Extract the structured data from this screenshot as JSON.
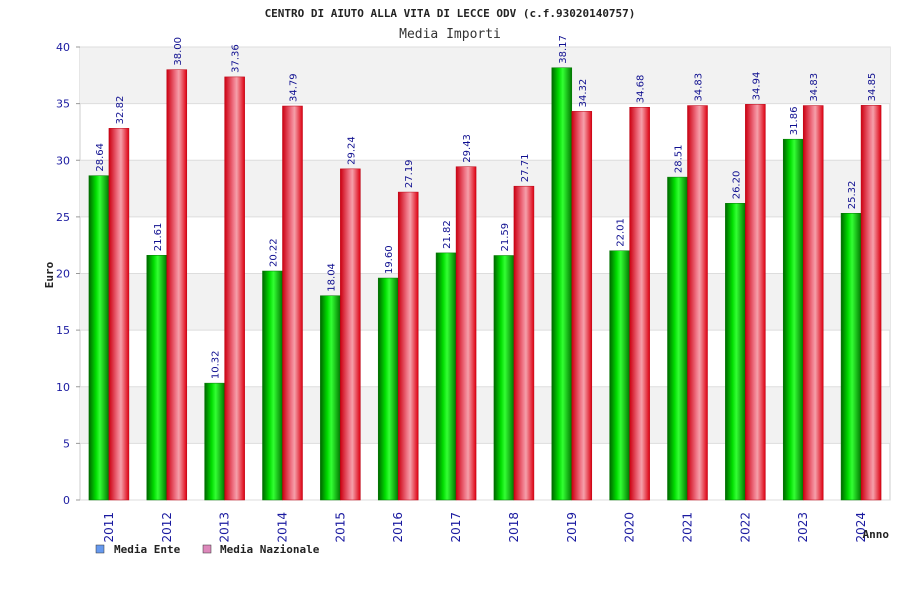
{
  "chart_data": {
    "type": "bar",
    "title": "CENTRO DI AIUTO ALLA VITA DI LECCE ODV (c.f.93020140757)",
    "subtitle": "Media Importi",
    "xlabel": "Anno",
    "ylabel": "Euro",
    "ylim": [
      0,
      40
    ],
    "yticks": [
      0,
      5,
      10,
      15,
      20,
      25,
      30,
      35,
      40
    ],
    "grid": true,
    "legend_position": "bottom-left",
    "categories": [
      "2011",
      "2012",
      "2013",
      "2014",
      "2015",
      "2016",
      "2017",
      "2018",
      "2019",
      "2020",
      "2021",
      "2022",
      "2023",
      "2024"
    ],
    "series": [
      {
        "name": "Media Ente",
        "color": "#00cc00",
        "legend_color": "#6699ee",
        "values": [
          28.64,
          21.61,
          10.32,
          20.22,
          18.04,
          19.6,
          21.82,
          21.59,
          38.17,
          22.01,
          28.51,
          26.2,
          31.86,
          25.32
        ],
        "labels": [
          "28.64",
          "21.61",
          "10.32",
          "20.22",
          "18.04",
          "19.60",
          "21.82",
          "21.59",
          "38.17",
          "22.01",
          "28.51",
          "26.20",
          "31.86",
          "25.32"
        ]
      },
      {
        "name": "Media Nazionale",
        "color": "#ee1122",
        "legend_color": "#dd88bb",
        "values": [
          32.82,
          38.0,
          37.36,
          34.79,
          29.24,
          27.19,
          29.43,
          27.71,
          34.32,
          34.68,
          34.83,
          34.94,
          34.83,
          34.85
        ],
        "labels": [
          "32.82",
          "38.00",
          "37.36",
          "34.79",
          "29.24",
          "27.19",
          "29.43",
          "27.71",
          "34.32",
          "34.68",
          "34.83",
          "34.94",
          "34.83",
          "34.85"
        ]
      }
    ]
  }
}
